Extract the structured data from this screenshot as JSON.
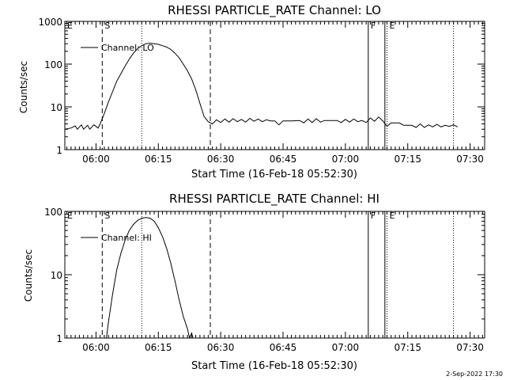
{
  "footer": {
    "timestamp": "2-Sep-2022 17:30"
  },
  "chart_data": [
    {
      "type": "line",
      "title": "RHESSI PARTICLE_RATE Channel: LO",
      "xlabel": "Start Time (16-Feb-18 05:52:30)",
      "ylabel": "Counts/sec",
      "y_scale": "log",
      "xlim": [
        "05:52:30",
        "07:33:30"
      ],
      "ylim": [
        1,
        1000
      ],
      "x_ticks": [
        "06:00",
        "06:15",
        "06:30",
        "06:45",
        "07:00",
        "07:15",
        "07:30"
      ],
      "y_ticks": [
        "1",
        "10",
        "100",
        "1000"
      ],
      "legend": {
        "position": "top-left",
        "entries": [
          "Channel: LO"
        ]
      },
      "markers": [
        {
          "label": "E",
          "time": "05:52:30",
          "style": "none"
        },
        {
          "label": "S",
          "time": "06:01:30",
          "style": "dashed"
        },
        {
          "label": "",
          "time": "06:11:00",
          "style": "dotted"
        },
        {
          "label": "",
          "time": "06:27:30",
          "style": "dashed"
        },
        {
          "label": "F",
          "time": "07:05:30",
          "style": "solid"
        },
        {
          "label": "",
          "time": "07:09:30",
          "style": "solid"
        },
        {
          "label": "E",
          "time": "07:10:00",
          "style": "dotted"
        },
        {
          "label": "",
          "time": "07:26:00",
          "style": "dotted"
        }
      ],
      "series": [
        {
          "name": "Channel: LO",
          "points": [
            [
              "05:52:30",
              3
            ],
            [
              "05:54:00",
              3.2
            ],
            [
              "05:55:00",
              3.6
            ],
            [
              "05:55:30",
              3
            ],
            [
              "05:56:30",
              3.8
            ],
            [
              "05:57:00",
              3
            ],
            [
              "05:58:00",
              3.7
            ],
            [
              "05:58:30",
              3
            ],
            [
              "05:59:30",
              3.8
            ],
            [
              "06:00:30",
              3.2
            ],
            [
              "06:01:00",
              4
            ],
            [
              "06:02:00",
              7
            ],
            [
              "06:03:00",
              13
            ],
            [
              "06:04:00",
              23
            ],
            [
              "06:05:00",
              40
            ],
            [
              "06:06:00",
              60
            ],
            [
              "06:07:00",
              90
            ],
            [
              "06:08:00",
              130
            ],
            [
              "06:09:00",
              180
            ],
            [
              "06:10:00",
              230
            ],
            [
              "06:11:00",
              270
            ],
            [
              "06:12:00",
              300
            ],
            [
              "06:13:00",
              310
            ],
            [
              "06:14:00",
              300
            ],
            [
              "06:15:00",
              290
            ],
            [
              "06:16:00",
              270
            ],
            [
              "06:17:00",
              250
            ],
            [
              "06:18:00",
              220
            ],
            [
              "06:19:00",
              180
            ],
            [
              "06:20:00",
              140
            ],
            [
              "06:21:00",
              100
            ],
            [
              "06:22:00",
              70
            ],
            [
              "06:23:00",
              45
            ],
            [
              "06:24:00",
              25
            ],
            [
              "06:25:00",
              12
            ],
            [
              "06:26:00",
              6
            ],
            [
              "06:27:00",
              4.5
            ],
            [
              "06:28:00",
              4
            ],
            [
              "06:29:00",
              5
            ],
            [
              "06:30:00",
              4.3
            ],
            [
              "06:31:00",
              5.2
            ],
            [
              "06:32:00",
              4.4
            ],
            [
              "06:33:00",
              5.3
            ],
            [
              "06:34:00",
              4.5
            ],
            [
              "06:35:00",
              5.1
            ],
            [
              "06:36:00",
              4.4
            ],
            [
              "06:37:00",
              5.4
            ],
            [
              "06:38:00",
              4.6
            ],
            [
              "06:39:00",
              5.2
            ],
            [
              "06:40:00",
              4.5
            ],
            [
              "06:41:00",
              5.0
            ],
            [
              "06:42:00",
              4.7
            ],
            [
              "06:43:00",
              4.7
            ],
            [
              "06:44:00",
              3.8
            ],
            [
              "06:45:00",
              4.7
            ],
            [
              "06:47:00",
              4.7
            ],
            [
              "06:49:00",
              4.8
            ],
            [
              "06:50:00",
              4.2
            ],
            [
              "06:51:00",
              5.2
            ],
            [
              "06:52:00",
              4.3
            ],
            [
              "06:53:00",
              5.3
            ],
            [
              "06:54:00",
              4.4
            ],
            [
              "06:55:00",
              4.8
            ],
            [
              "06:56:00",
              4.8
            ],
            [
              "06:58:00",
              4.8
            ],
            [
              "06:59:00",
              4.3
            ],
            [
              "07:00:00",
              5.1
            ],
            [
              "07:01:00",
              4.4
            ],
            [
              "07:02:00",
              5.2
            ],
            [
              "07:03:00",
              4.5
            ],
            [
              "07:04:00",
              4.8
            ],
            [
              "07:05:00",
              4.3
            ],
            [
              "07:06:00",
              5.5
            ],
            [
              "07:07:00",
              4.6
            ],
            [
              "07:08:00",
              5.8
            ],
            [
              "07:09:00",
              4.7
            ],
            [
              "07:10:00",
              3.5
            ],
            [
              "07:11:00",
              4.2
            ],
            [
              "07:13:00",
              4.2
            ],
            [
              "07:14:00",
              3.7
            ],
            [
              "07:16:00",
              3.7
            ],
            [
              "07:17:00",
              3.3
            ],
            [
              "07:18:00",
              4.0
            ],
            [
              "07:19:00",
              3.3
            ],
            [
              "07:20:00",
              3.8
            ],
            [
              "07:21:00",
              3.4
            ],
            [
              "07:22:00",
              3.9
            ],
            [
              "07:23:00",
              3.4
            ],
            [
              "07:24:00",
              3.7
            ],
            [
              "07:25:00",
              3.5
            ],
            [
              "07:26:00",
              3.8
            ],
            [
              "07:27:00",
              3.4
            ]
          ]
        }
      ]
    },
    {
      "type": "line",
      "title": "RHESSI PARTICLE_RATE Channel: HI",
      "xlabel": "Start Time (16-Feb-18 05:52:30)",
      "ylabel": "Counts/sec",
      "y_scale": "log",
      "xlim": [
        "05:52:30",
        "07:33:30"
      ],
      "ylim": [
        1,
        100
      ],
      "x_ticks": [
        "06:00",
        "06:15",
        "06:30",
        "06:45",
        "07:00",
        "07:15",
        "07:30"
      ],
      "y_ticks": [
        "1",
        "10",
        "100"
      ],
      "legend": {
        "position": "top-left",
        "entries": [
          "Channel: HI"
        ]
      },
      "markers": [
        {
          "label": "E",
          "time": "05:52:30",
          "style": "none"
        },
        {
          "label": "S",
          "time": "06:01:30",
          "style": "dashed"
        },
        {
          "label": "",
          "time": "06:11:00",
          "style": "dotted"
        },
        {
          "label": "",
          "time": "06:27:30",
          "style": "dashed"
        },
        {
          "label": "F",
          "time": "07:05:30",
          "style": "solid"
        },
        {
          "label": "",
          "time": "07:09:30",
          "style": "solid"
        },
        {
          "label": "E",
          "time": "07:10:00",
          "style": "dotted"
        },
        {
          "label": "",
          "time": "07:26:00",
          "style": "dotted"
        }
      ],
      "series": [
        {
          "name": "Channel: HI",
          "points": [
            [
              "06:02:30",
              1
            ],
            [
              "06:03:00",
              1.8
            ],
            [
              "06:04:00",
              5
            ],
            [
              "06:05:00",
              12
            ],
            [
              "06:06:00",
              22
            ],
            [
              "06:07:00",
              35
            ],
            [
              "06:08:00",
              50
            ],
            [
              "06:09:00",
              62
            ],
            [
              "06:10:00",
              72
            ],
            [
              "06:11:00",
              78
            ],
            [
              "06:12:00",
              80
            ],
            [
              "06:13:00",
              78
            ],
            [
              "06:14:00",
              70
            ],
            [
              "06:15:00",
              55
            ],
            [
              "06:16:00",
              40
            ],
            [
              "06:17:00",
              26
            ],
            [
              "06:18:00",
              15
            ],
            [
              "06:19:00",
              8
            ],
            [
              "06:20:00",
              4
            ],
            [
              "06:21:00",
              2.2
            ],
            [
              "06:22:00",
              1.4
            ],
            [
              "06:22:30",
              1.0
            ],
            [
              "06:23:00",
              1.2
            ],
            [
              "06:23:30",
              0.9
            ]
          ]
        }
      ]
    }
  ]
}
